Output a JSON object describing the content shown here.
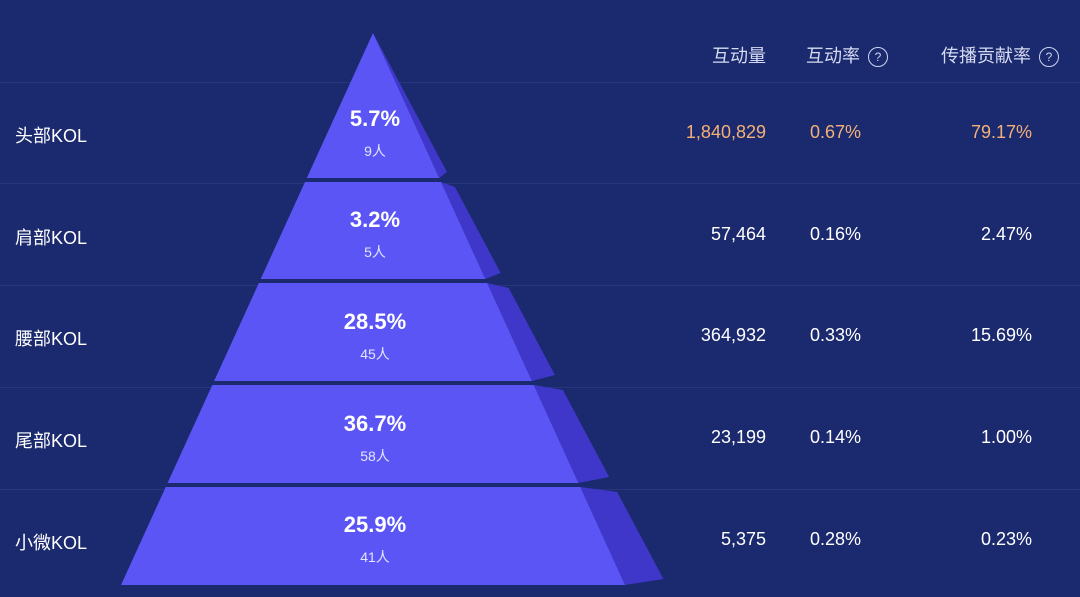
{
  "columns": {
    "interactions": "互动量",
    "interaction_rate": "互动率",
    "contribution_rate": "传播贡献率"
  },
  "tiers": [
    {
      "label": "头部KOL",
      "pct": "5.7%",
      "count": "9人",
      "interactions": "1,840,829",
      "rate": "0.67%",
      "contribution": "79.17%",
      "highlight": true
    },
    {
      "label": "肩部KOL",
      "pct": "3.2%",
      "count": "5人",
      "interactions": "57,464",
      "rate": "0.16%",
      "contribution": "2.47%",
      "highlight": false
    },
    {
      "label": "腰部KOL",
      "pct": "28.5%",
      "count": "45人",
      "interactions": "364,932",
      "rate": "0.33%",
      "contribution": "15.69%",
      "highlight": false
    },
    {
      "label": "尾部KOL",
      "pct": "36.7%",
      "count": "58人",
      "interactions": "23,199",
      "rate": "0.14%",
      "contribution": "1.00%",
      "highlight": false
    },
    {
      "label": "小微KOL",
      "pct": "25.9%",
      "count": "41人",
      "interactions": "5,375",
      "rate": "0.28%",
      "contribution": "0.23%",
      "highlight": false
    }
  ],
  "colors": {
    "background": "#1b2a6e",
    "pyramid_face": "#5b55f5",
    "pyramid_side": "#3f37c9",
    "highlight": "#f4b077"
  },
  "icons": {
    "help": "question-circle-icon"
  }
}
